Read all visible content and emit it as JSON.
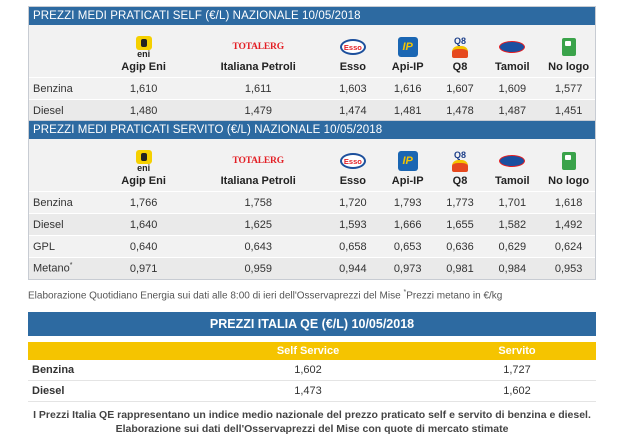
{
  "self": {
    "title": "PREZZI MEDI PRATICATI SELF (€/L) NAZIONALE 10/05/2018",
    "brands": [
      "Agip Eni",
      "Italiana Petroli",
      "Esso",
      "Api-IP",
      "Q8",
      "Tamoil",
      "No logo"
    ],
    "rows": [
      {
        "label": "Benzina",
        "values": [
          "1,610",
          "1,611",
          "1,603",
          "1,616",
          "1,607",
          "1,609",
          "1,577"
        ]
      },
      {
        "label": "Diesel",
        "values": [
          "1,480",
          "1,479",
          "1,474",
          "1,481",
          "1,478",
          "1,487",
          "1,451"
        ]
      }
    ]
  },
  "servito": {
    "title": "PREZZI MEDI PRATICATI SERVITO (€/L) NAZIONALE 10/05/2018",
    "brands": [
      "Agip Eni",
      "Italiana Petroli",
      "Esso",
      "Api-IP",
      "Q8",
      "Tamoil",
      "No logo"
    ],
    "rows": [
      {
        "label": "Benzina",
        "values": [
          "1,766",
          "1,758",
          "1,720",
          "1,793",
          "1,773",
          "1,701",
          "1,618"
        ]
      },
      {
        "label": "Diesel",
        "values": [
          "1,640",
          "1,625",
          "1,593",
          "1,666",
          "1,655",
          "1,582",
          "1,492"
        ]
      },
      {
        "label": "GPL",
        "values": [
          "0,640",
          "0,643",
          "0,658",
          "0,653",
          "0,636",
          "0,629",
          "0,624"
        ]
      },
      {
        "label": "Metano",
        "label_sup": "*",
        "values": [
          "0,971",
          "0,959",
          "0,944",
          "0,973",
          "0,981",
          "0,984",
          "0,953"
        ]
      }
    ]
  },
  "logos": {
    "eni_text": "eni",
    "totalerg_text": "TOTALERG",
    "esso_text": "Esso",
    "ip_text": "IP",
    "q8_text": "Q8"
  },
  "note": {
    "text": "Elaborazione Quotidiano Energia sui dati alle 8:00 di ieri dell'Osservaprezzi del Mise ",
    "sup": "*",
    "suffix": "Prezzi metano in €/kg"
  },
  "qe": {
    "title": "PREZZI ITALIA QE (€/L) 10/05/2018",
    "col_self": "Self Service",
    "col_servito": "Servito",
    "rows": [
      {
        "label": "Benzina",
        "self": "1,602",
        "servito": "1,727"
      },
      {
        "label": "Diesel",
        "self": "1,473",
        "servito": "1,602"
      }
    ],
    "footer_1": "I Prezzi Italia QE rappresentano un indice medio nazionale del prezzo praticato self e servito di benzina e diesel.",
    "footer_2": "Elaborazione sui dati dell'Osservaprezzi del Mise con quote di mercato stimate"
  },
  "colors": {
    "header_blue": "#2d6aa1",
    "accent_yellow": "#f5c400"
  }
}
